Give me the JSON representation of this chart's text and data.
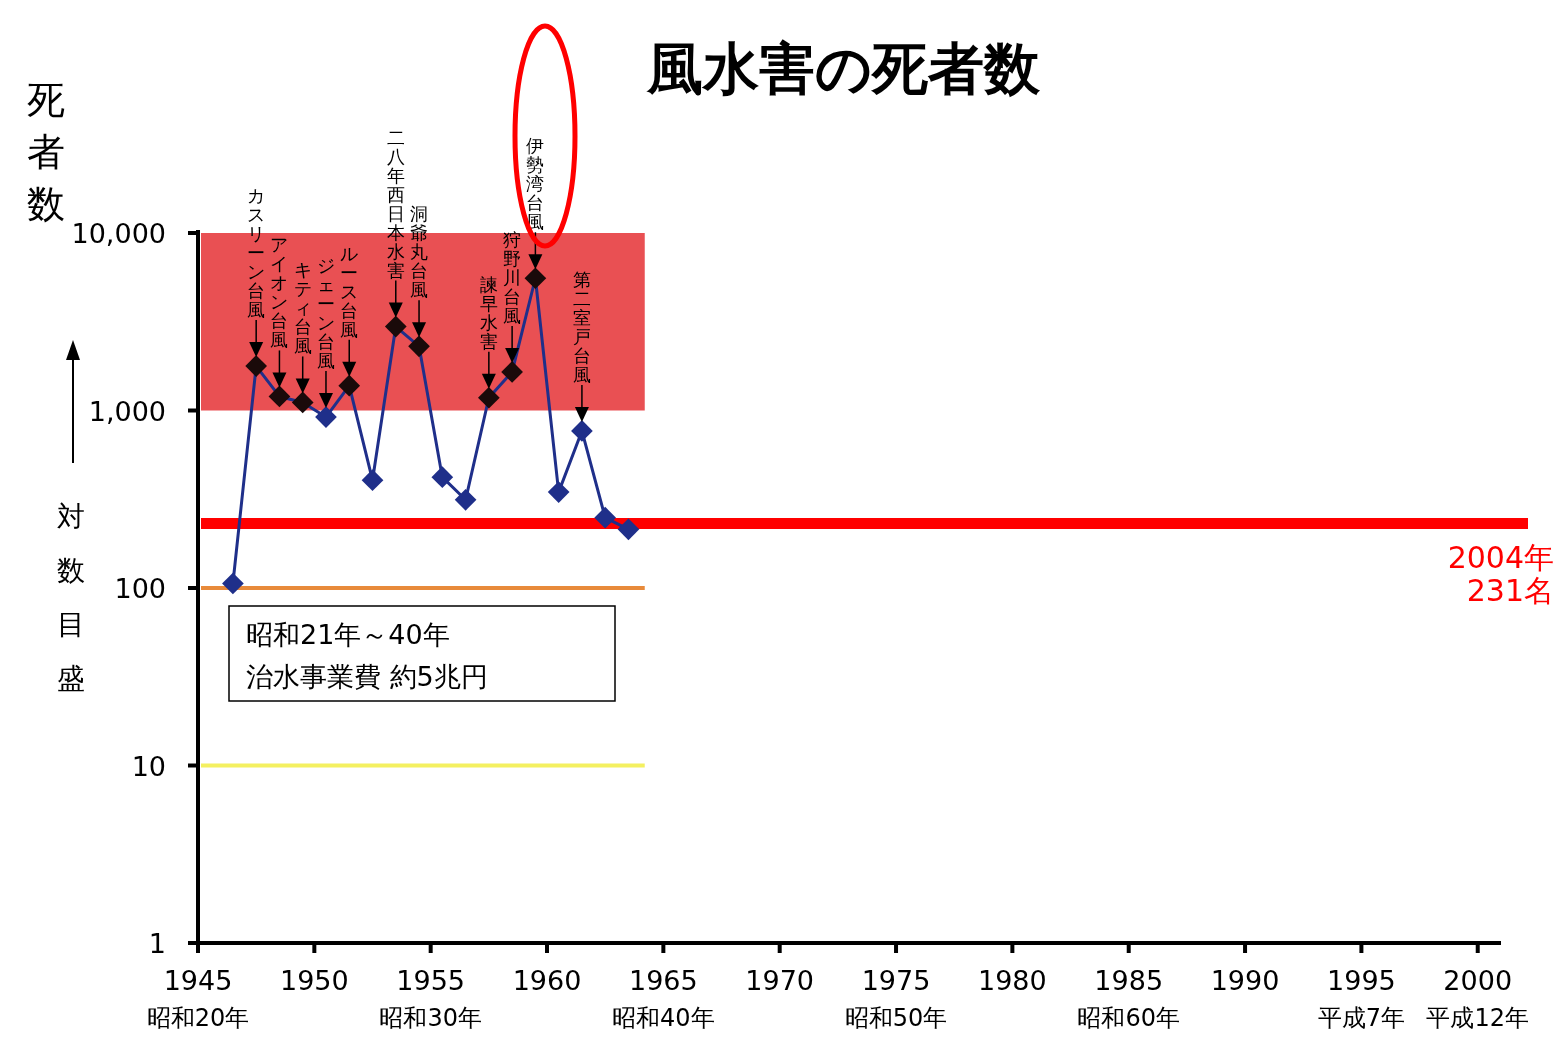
{
  "chart_data": {
    "type": "line",
    "title": "風水害の死者数",
    "ylabel": "死者数",
    "x": [
      1946.5,
      1947.5,
      1948.5,
      1949.5,
      1950.5,
      1951.5,
      1952.5,
      1953.5,
      1954.5,
      1955.5,
      1956.5,
      1957.5,
      1958.5,
      1959.5,
      1960.5,
      1961.5,
      1962.5,
      1963.5
    ],
    "series": [
      {
        "color": "#1f2f8a",
        "colors": [
          "#1f2f8a",
          "#1a0a0a",
          "#1a0a0a",
          "#1a0a0a",
          "#1f2f8a",
          "#1a0a0a",
          "#1f2f8a",
          "#1a0a0a",
          "#1a0a0a",
          "#1f2f8a",
          "#1f2f8a",
          "#1a0a0a",
          "#1a0a0a",
          "#1a0a0a",
          "#1f2f8a",
          "#1f2f8a",
          "#1f2f8a",
          "#1f2f8a"
        ],
        "values": [
          106,
          1780,
          1200,
          1110,
          918,
          1380,
          405,
          2970,
          2300,
          421,
          314,
          1180,
          1650,
          5560,
          347,
          767,
          249,
          214
        ]
      }
    ],
    "log": true,
    "marker": "diamond",
    "grid": false,
    "xlim": [
      1945,
      2001
    ],
    "xticks": [
      {
        "value": 1945,
        "label": "1945\n昭和20年"
      },
      1950,
      {
        "value": 1955,
        "label": "1955\n昭和30年"
      },
      1960,
      {
        "value": 1965,
        "label": "1965\n昭和40年"
      },
      1970,
      {
        "value": 1975,
        "label": "1975\n昭和50年"
      },
      1980,
      {
        "value": 1985,
        "label": "1985\n昭和60年"
      },
      1990,
      {
        "value": 1995,
        "label": "1995\n平成7年"
      },
      {
        "value": 2000,
        "label": "2000\n平成12年"
      }
    ],
    "ylim": [
      1,
      10000
    ],
    "yticks": [
      1,
      10,
      100,
      {
        "value": 1000,
        "label": "1,000"
      },
      {
        "value": 10000,
        "label": "10,000"
      }
    ],
    "bands": [
      {
        "axis": "y",
        "from": 1000,
        "to": 10000,
        "color": "#e8474a"
      }
    ],
    "ref_lines": [
      {
        "axis": "y",
        "value": 231,
        "label": "2004年231名",
        "color": "#ff0000"
      },
      {
        "axis": "y",
        "value": 100,
        "color": "#e88a3a"
      },
      {
        "axis": "y",
        "value": 10,
        "color": "#f4f060"
      }
    ],
    "annotations": [
      {
        "text": "カスリーン台風",
        "x": 1947.5,
        "y": 1780
      },
      {
        "text": "アイオン台風",
        "x": 1948.5,
        "y": 1200
      },
      {
        "text": "キティ台風",
        "x": 1949.5,
        "y": 1110
      },
      {
        "text": "ジェーン台風",
        "x": 1950.5,
        "y": 918
      },
      {
        "text": "ルース台風",
        "x": 1951.5,
        "y": 1380
      },
      {
        "text": "二八年西日本水害",
        "x": 1953.5,
        "y": 2970
      },
      {
        "text": "洞爺丸台風",
        "x": 1954.5,
        "y": 2300
      },
      {
        "text": "諫早水害",
        "x": 1957.5,
        "y": 1180
      },
      {
        "text": "狩野川台風",
        "x": 1958.5,
        "y": 1650
      },
      {
        "text": "伊勢湾台風",
        "x": 1959.5,
        "y": 5560
      },
      {
        "text": "第二室戸台風",
        "x": 1961.5,
        "y": 767
      },
      "昭和21年～40年治水事業費 約5兆円",
      "対数目盛"
    ]
  }
}
